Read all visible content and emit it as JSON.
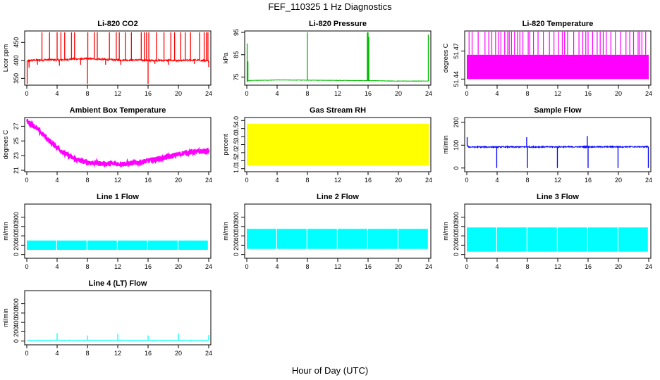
{
  "figure": {
    "title": "FEF_110325  1 Hz Diagnostics",
    "xlabel": "Hour of Day (UTC)"
  },
  "chart_data": [
    {
      "type": "line",
      "title": "Li-820 CO2",
      "ylabel": "Licor ppm",
      "color": "#ff0000",
      "xlim": [
        0,
        24
      ],
      "xticks": [
        0,
        4,
        8,
        12,
        16,
        20,
        24
      ],
      "ylim": [
        335,
        478
      ],
      "yticks": [
        350,
        400,
        450
      ],
      "baseline": 400,
      "noise": 2.5,
      "x": [
        0,
        0.3,
        2,
        3,
        4,
        5,
        6,
        7,
        8,
        9,
        10,
        11,
        12,
        13,
        14,
        15,
        16,
        17,
        18,
        19,
        20,
        21,
        22,
        23,
        24
      ],
      "y": [
        396,
        400,
        401,
        402,
        401,
        402,
        404,
        404,
        405,
        404,
        403,
        402,
        401,
        401,
        401,
        401,
        400,
        400,
        400,
        400,
        399,
        400,
        401,
        400,
        398
      ],
      "spikes": [
        [
          0.05,
          335
        ],
        [
          0.3,
          380
        ],
        [
          2.0,
          478
        ],
        [
          3.0,
          478
        ],
        [
          4.0,
          478
        ],
        [
          4.5,
          478
        ],
        [
          5.0,
          478
        ],
        [
          5.9,
          478
        ],
        [
          6.3,
          478
        ],
        [
          8.0,
          335
        ],
        [
          8.05,
          478
        ],
        [
          8.9,
          478
        ],
        [
          9.3,
          478
        ],
        [
          10.9,
          478
        ],
        [
          11.8,
          478
        ],
        [
          12.2,
          478
        ],
        [
          13.0,
          478
        ],
        [
          13.8,
          478
        ],
        [
          15.1,
          478
        ],
        [
          15.5,
          478
        ],
        [
          15.8,
          478
        ],
        [
          16.0,
          335
        ],
        [
          16.1,
          478
        ],
        [
          17.1,
          478
        ],
        [
          18.1,
          478
        ],
        [
          19.0,
          478
        ],
        [
          19.5,
          478
        ],
        [
          20.3,
          478
        ],
        [
          20.9,
          478
        ],
        [
          21.6,
          478
        ],
        [
          22.8,
          478
        ],
        [
          23.4,
          478
        ],
        [
          23.7,
          478
        ],
        [
          23.9,
          478
        ],
        [
          24.0,
          382
        ]
      ],
      "dips": [
        [
          1.4,
          388
        ],
        [
          4.3,
          385
        ],
        [
          7.1,
          388
        ],
        [
          10.4,
          388
        ],
        [
          12.4,
          388
        ],
        [
          16.9,
          390
        ],
        [
          18.7,
          388
        ],
        [
          22.1,
          390
        ]
      ]
    },
    {
      "type": "line",
      "title": "Li-820 Pressure",
      "ylabel": "kPa",
      "color": "#00bb00",
      "xlim": [
        0,
        24
      ],
      "xticks": [
        0,
        4,
        8,
        12,
        16,
        20,
        24
      ],
      "ylim": [
        72,
        95
      ],
      "yticks": [
        75,
        85,
        95
      ],
      "noise": 0.08,
      "x": [
        0,
        0.4,
        3,
        4,
        8,
        12,
        16,
        20,
        24
      ],
      "y": [
        73.0,
        73.5,
        73.6,
        73.7,
        73.6,
        73.5,
        73.4,
        73.2,
        73.2
      ],
      "spikes": [
        [
          0.05,
          90
        ],
        [
          0.15,
          82
        ],
        [
          8.0,
          95
        ],
        [
          15.9,
          95
        ],
        [
          16.0,
          95
        ],
        [
          16.1,
          93
        ],
        [
          23.95,
          94
        ]
      ]
    },
    {
      "type": "band",
      "title": "Li-820 Temperature",
      "ylabel": "degrees C",
      "color": "#ff00ff",
      "xlim": [
        0,
        24
      ],
      "xticks": [
        0,
        4,
        8,
        12,
        16,
        20,
        24
      ],
      "ylim": [
        51.435,
        51.49
      ],
      "yticks": [
        51.44,
        51.47
      ],
      "band": [
        51.44,
        51.466
      ],
      "spikes": [
        0.3,
        0.7,
        1.5,
        2.4,
        2.9,
        3.3,
        3.8,
        4.2,
        4.5,
        5.0,
        5.4,
        5.6,
        5.9,
        6.3,
        6.7,
        7.0,
        7.4,
        8.1,
        8.3,
        8.8,
        9.4,
        10.1,
        10.9,
        11.5,
        12.1,
        12.6,
        12.9,
        13.3,
        14.1,
        14.8,
        15.3,
        15.7,
        16.0,
        16.6,
        17.2,
        17.6,
        18.0,
        18.4,
        19.0,
        19.6,
        20.3,
        21.0,
        21.5,
        22.0,
        22.6,
        22.8,
        23.1,
        23.6
      ]
    },
    {
      "type": "line",
      "title": "Ambient Box Temperature",
      "ylabel": "degrees C",
      "color": "#ff00ff",
      "xlim": [
        0,
        24
      ],
      "xticks": [
        0,
        4,
        8,
        12,
        16,
        20,
        24
      ],
      "ylim": [
        21,
        28
      ],
      "yticks": [
        21,
        23,
        25,
        27
      ],
      "noise": 0.35,
      "x": [
        0,
        1,
        2,
        3,
        4,
        5,
        6,
        7,
        8,
        9,
        10,
        11,
        12,
        13,
        14,
        15,
        16,
        17,
        18,
        19,
        20,
        21,
        22,
        23,
        24
      ],
      "y": [
        27.7,
        27.0,
        26.0,
        25.0,
        24.1,
        23.3,
        22.7,
        22.3,
        22.1,
        22.0,
        21.9,
        21.9,
        21.9,
        21.9,
        22.0,
        22.1,
        22.3,
        22.5,
        22.7,
        22.9,
        23.2,
        23.4,
        23.5,
        23.6,
        23.6
      ]
    },
    {
      "type": "band",
      "title": "Gas Stream RH",
      "ylabel": "percent",
      "color": "#ffff00",
      "xlim": [
        0,
        24
      ],
      "xticks": [
        0,
        4,
        8,
        12,
        16,
        20,
        24
      ],
      "ylim": [
        0.9,
        4.1
      ],
      "yticks": [
        1.0,
        1.5,
        2.0,
        2.5,
        3.0,
        3.5,
        4.0
      ],
      "band": [
        1.2,
        3.8
      ],
      "spikes": []
    },
    {
      "type": "line",
      "title": "Sample Flow",
      "ylabel": "ml/min",
      "color": "#0000ff",
      "xlim": [
        0,
        24
      ],
      "xticks": [
        0,
        4,
        8,
        12,
        16,
        20,
        24
      ],
      "ylim": [
        -10,
        215
      ],
      "yticks": [
        0,
        100,
        200
      ],
      "noise": 2.5,
      "x": [
        0,
        0.3,
        24
      ],
      "y": [
        98,
        92,
        93
      ],
      "spikes": [
        [
          0.05,
          135
        ],
        [
          3.95,
          0
        ],
        [
          7.9,
          135
        ],
        [
          8.0,
          0
        ],
        [
          11.95,
          0
        ],
        [
          15.9,
          140
        ],
        [
          16.0,
          0
        ],
        [
          19.95,
          0
        ],
        [
          23.95,
          0
        ]
      ]
    },
    {
      "type": "band",
      "title": "Line 1 Flow",
      "ylabel": "ml/min",
      "color": "#00ffff",
      "xlim": [
        0,
        24
      ],
      "xticks": [
        0,
        4,
        8,
        12,
        16,
        20,
        24
      ],
      "ylim": [
        -50,
        1050
      ],
      "yticks": [
        0,
        200,
        400,
        600,
        800
      ],
      "band": [
        100,
        300
      ],
      "gaps": [
        4,
        8,
        12,
        16,
        20,
        24
      ]
    },
    {
      "type": "band",
      "title": "Line 2 Flow",
      "ylabel": "ml/min",
      "color": "#00ffff",
      "xlim": [
        0,
        24
      ],
      "xticks": [
        0,
        4,
        8,
        12,
        16,
        20,
        24
      ],
      "ylim": [
        -50,
        1050
      ],
      "yticks": [
        0,
        200,
        400,
        600,
        800
      ],
      "band": [
        120,
        550
      ],
      "gaps": [
        4,
        8,
        12,
        16,
        20,
        24
      ]
    },
    {
      "type": "band",
      "title": "Line 3 Flow",
      "ylabel": "ml/min",
      "color": "#00ffff",
      "xlim": [
        0,
        24
      ],
      "xticks": [
        0,
        4,
        8,
        12,
        16,
        20,
        24
      ],
      "ylim": [
        -50,
        1050
      ],
      "yticks": [
        0,
        200,
        400,
        600,
        800
      ],
      "band": [
        60,
        580
      ],
      "gaps": [
        4,
        8,
        12,
        16,
        20,
        24
      ]
    },
    {
      "type": "line",
      "title": "Line 4 (LT) Flow",
      "ylabel": "ml/min",
      "color": "#00ffff",
      "xlim": [
        0,
        24
      ],
      "xticks": [
        0,
        4,
        8,
        12,
        16,
        20,
        24
      ],
      "ylim": [
        -50,
        1050
      ],
      "yticks": [
        0,
        200,
        400,
        600,
        800
      ],
      "noise": 3,
      "x": [
        0,
        24
      ],
      "y": [
        18,
        18
      ],
      "spikes": [
        [
          4.0,
          170
        ],
        [
          8.0,
          120
        ],
        [
          12.0,
          150
        ],
        [
          16.0,
          120
        ],
        [
          20.0,
          160
        ],
        [
          24.0,
          130
        ]
      ]
    }
  ]
}
